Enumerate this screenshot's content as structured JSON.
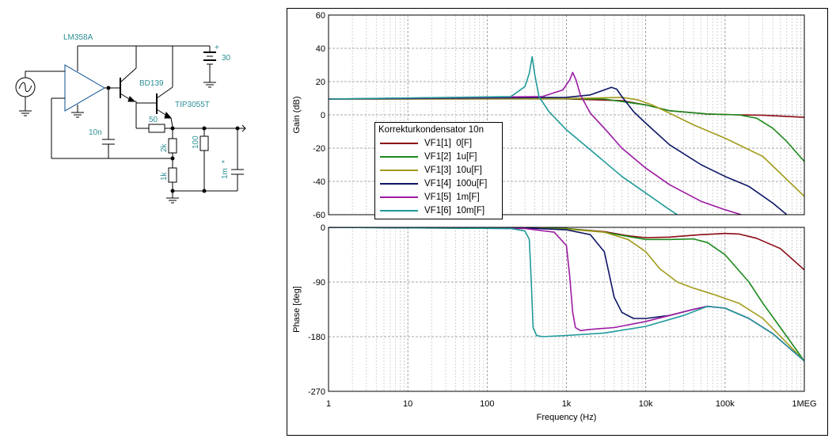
{
  "schematic": {
    "labels": {
      "opamp": "LM358A",
      "q1": "BD139",
      "q2": "TIP3055T",
      "supply_voltage": "30",
      "supply_plus": "+",
      "cap_comp": "10n",
      "r_emitter": "50",
      "r_top": "2k",
      "r_bottom": "1k",
      "r_load": "100",
      "c_load": "1m",
      "c_load_mark": "*"
    }
  },
  "legend": {
    "title": "Korrekturkondensator 10n",
    "entries": [
      {
        "name": "VF1[1]  0[F]",
        "color": "#8b0a12"
      },
      {
        "name": "VF1[2]  1u[F]",
        "color": "#1b8a1b"
      },
      {
        "name": "VF1[3]  10u[F]",
        "color": "#a39c1c"
      },
      {
        "name": "VF1[4]  100u[F]",
        "color": "#0d1566"
      },
      {
        "name": "VF1[5]  1m[F]",
        "color": "#9c1aa3"
      },
      {
        "name": "VF1[6]  10m[F]",
        "color": "#1f9a9a"
      }
    ]
  },
  "chart_data": [
    {
      "type": "line",
      "xlabel": "Frequency (Hz)",
      "ylabel": "Gain (dB)",
      "xscale": "log",
      "xlim": [
        1,
        1000000
      ],
      "ylim": [
        -60,
        60
      ],
      "x_ticks": [
        "1",
        "10",
        "100",
        "1k",
        "10k",
        "100k",
        "1MEG"
      ],
      "y_ticks": [
        "60",
        "40",
        "20",
        "0",
        "-20",
        "-40",
        "-60"
      ],
      "grid": true,
      "series": [
        {
          "name": "VF1[1]  0[F]",
          "color": "#8b0a12",
          "x": [
            1,
            1000,
            5000,
            10000,
            20000,
            60000,
            150000,
            300000,
            1000000
          ],
          "y": [
            9.5,
            9.6,
            8.5,
            6,
            2.5,
            0.5,
            0,
            -0.2,
            -1.5
          ]
        },
        {
          "name": "VF1[2]  1u[F]",
          "color": "#1b8a1b",
          "x": [
            1,
            1000,
            3000,
            10000,
            20000,
            60000,
            150000,
            250000,
            400000,
            600000,
            1000000
          ],
          "y": [
            9.5,
            9.7,
            9.5,
            6,
            2.5,
            0.5,
            0,
            -2,
            -8,
            -16,
            -28
          ]
        },
        {
          "name": "VF1[3]  10u[F]",
          "color": "#a39c1c",
          "x": [
            1,
            1000,
            5000,
            8000,
            12000,
            20000,
            40000,
            100000,
            300000,
            1000000
          ],
          "y": [
            9.5,
            9.8,
            10.5,
            9,
            6,
            1,
            -6,
            -14,
            -25,
            -49
          ]
        },
        {
          "name": "VF1[4]  100u[F]",
          "color": "#0d1566",
          "x": [
            1,
            1000,
            2000,
            3000,
            3700,
            4300,
            5000,
            7000,
            10000,
            20000,
            50000,
            100000,
            200000,
            400000,
            600000
          ],
          "y": [
            9.5,
            10.5,
            12,
            15,
            16.5,
            15.5,
            11,
            2,
            -5,
            -18,
            -30,
            -37,
            -43,
            -53,
            -60
          ]
        },
        {
          "name": "VF1[5]  1m[F]",
          "color": "#9c1aa3",
          "x": [
            1,
            500,
            900,
            1100,
            1200,
            1320,
            1500,
            2000,
            3000,
            5000,
            10000,
            20000,
            50000,
            100000,
            160000
          ],
          "y": [
            9.5,
            11,
            15,
            21,
            25.5,
            21,
            12,
            1,
            -8,
            -20,
            -32,
            -42,
            -52,
            -57,
            -60
          ]
        },
        {
          "name": "VF1[6]  10m[F]",
          "color": "#1f9a9a",
          "x": [
            1,
            200,
            300,
            340,
            370,
            400,
            450,
            600,
            1000,
            2000,
            5000,
            10000,
            20000,
            25000
          ],
          "y": [
            9.5,
            11,
            17,
            25,
            35,
            24,
            11,
            2,
            -9,
            -21,
            -37,
            -47,
            -57,
            -60
          ]
        }
      ]
    },
    {
      "type": "line",
      "xlabel": "Frequency (Hz)",
      "ylabel": "Phase [deg]",
      "xscale": "log",
      "xlim": [
        1,
        1000000
      ],
      "ylim": [
        -270,
        0
      ],
      "x_ticks": [
        "1",
        "10",
        "100",
        "1k",
        "10k",
        "100k",
        "1MEG"
      ],
      "y_ticks": [
        "0",
        "-90",
        "-180",
        "-270"
      ],
      "grid": true,
      "series": [
        {
          "name": "VF1[1]  0[F]",
          "color": "#8b0a12",
          "x": [
            1,
            300,
            1000,
            3000,
            6000,
            10000,
            20000,
            50000,
            100000,
            150000,
            250000,
            500000,
            1000000
          ],
          "y": [
            0,
            -1,
            -2,
            -7,
            -14,
            -17,
            -16,
            -12,
            -10,
            -11,
            -18,
            -35,
            -70
          ]
        },
        {
          "name": "VF1[2]  1u[F]",
          "color": "#1b8a1b",
          "x": [
            1,
            300,
            1000,
            3000,
            6000,
            10000,
            20000,
            40000,
            60000,
            100000,
            200000,
            300000,
            500000,
            1000000
          ],
          "y": [
            0,
            -1,
            -2,
            -8,
            -15,
            -20,
            -20,
            -19,
            -25,
            -45,
            -90,
            -125,
            -165,
            -220
          ]
        },
        {
          "name": "VF1[3]  10u[F]",
          "color": "#a39c1c",
          "x": [
            1,
            300,
            1000,
            3000,
            6000,
            10000,
            15000,
            25000,
            40000,
            70000,
            150000,
            300000,
            600000,
            1000000
          ],
          "y": [
            0,
            -1,
            -3,
            -8,
            -20,
            -40,
            -68,
            -90,
            -100,
            -110,
            -125,
            -150,
            -190,
            -220
          ]
        },
        {
          "name": "VF1[4]  100u[F]",
          "color": "#0d1566",
          "x": [
            1,
            300,
            1000,
            2000,
            3000,
            3500,
            4000,
            5000,
            7000,
            10000,
            20000,
            40000,
            60000,
            100000,
            200000,
            400000,
            1000000
          ],
          "y": [
            0,
            -1,
            -4,
            -12,
            -40,
            -80,
            -115,
            -140,
            -150,
            -150,
            -145,
            -135,
            -130,
            -133,
            -150,
            -175,
            -220
          ]
        },
        {
          "name": "VF1[5]  1m[F]",
          "color": "#9c1aa3",
          "x": [
            1,
            300,
            700,
            1000,
            1100,
            1200,
            1300,
            1500,
            2000,
            4000,
            10000,
            20000,
            40000,
            60000,
            100000,
            200000,
            400000,
            1000000
          ],
          "y": [
            0,
            -2,
            -8,
            -30,
            -80,
            -140,
            -165,
            -170,
            -168,
            -165,
            -155,
            -145,
            -135,
            -130,
            -133,
            -150,
            -175,
            -220
          ]
        },
        {
          "name": "VF1[6]  10m[F]",
          "color": "#1f9a9a",
          "x": [
            1,
            200,
            300,
            340,
            360,
            380,
            420,
            500,
            1000,
            3000,
            10000,
            30000,
            60000,
            100000,
            200000,
            400000,
            1000000
          ],
          "y": [
            0,
            -2,
            -6,
            -20,
            -90,
            -165,
            -178,
            -180,
            -178,
            -174,
            -163,
            -145,
            -130,
            -133,
            -150,
            -175,
            -220
          ]
        }
      ]
    }
  ]
}
